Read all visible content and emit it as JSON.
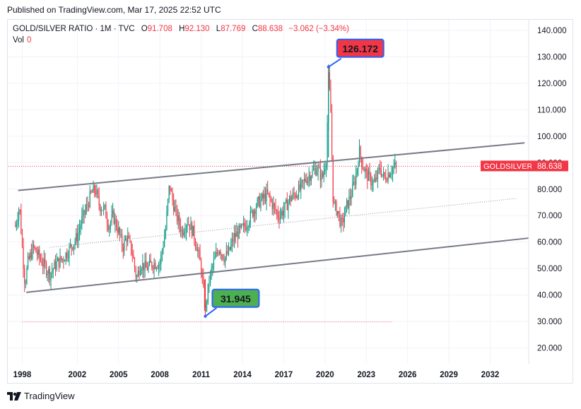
{
  "header": {
    "published": "Published on TradingView.com, Mar 17, 2025 22:52 UTC"
  },
  "legend": {
    "symbol": "GOLD/SILVER RATIO · 1M · TVC",
    "open_label": "O",
    "open": "91.708",
    "high_label": "H",
    "high": "92.130",
    "low_label": "L",
    "low": "87.769",
    "close_label": "C",
    "close": "88.638",
    "change": "−3.062 (−3.34%)",
    "vol_label": "Vol",
    "vol": "0"
  },
  "footer": {
    "brand": "TradingView"
  },
  "chart_data": {
    "type": "candlestick",
    "symbol": "GOLD/SILVER RATIO",
    "interval": "1M",
    "xlim": [
      1997.0,
      2034.8
    ],
    "ylim": [
      14.0,
      144.0
    ],
    "y_ticks": [
      "20.000",
      "30.000",
      "40.000",
      "50.000",
      "60.000",
      "70.000",
      "80.000",
      "90.000",
      "100.000",
      "110.000",
      "120.000",
      "130.000",
      "140.000"
    ],
    "y_tick_values": [
      20,
      30,
      40,
      50,
      60,
      70,
      80,
      90,
      100,
      110,
      120,
      130,
      140
    ],
    "x_ticks": [
      "1998",
      "2002",
      "2005",
      "2008",
      "2011",
      "2014",
      "2017",
      "2020",
      "2023",
      "2026",
      "2029",
      "2032"
    ],
    "x_tick_values": [
      1998,
      2002,
      2005,
      2008,
      2011,
      2014,
      2017,
      2020,
      2023,
      2026,
      2029,
      2032
    ],
    "last_price": 88.638,
    "last_label": "GOLDSILVER",
    "last_value_text": "88.638",
    "high_annotation": {
      "x": 2020.25,
      "y": 126.172,
      "text": "126.172"
    },
    "low_annotation": {
      "x": 2011.3,
      "y": 31.945,
      "text": "31.945"
    },
    "trend_lines": [
      {
        "name": "upper",
        "x1": 1997.7,
        "y1": 79.5,
        "x2": 2034.5,
        "y2": 97.5
      },
      {
        "name": "lower",
        "x1": 1998.3,
        "y1": 41.0,
        "x2": 2034.8,
        "y2": 61.5
      },
      {
        "name": "mid",
        "x1": 2000.0,
        "y1": 58.0,
        "x2": 2033.9,
        "y2": 76.5,
        "dotted": true
      }
    ],
    "low_level_line": {
      "y": 29.8,
      "x1": 1998.0,
      "x2": 2024.9
    },
    "colors": {
      "up": "#089981",
      "down": "#f23645",
      "trend": "#787b86",
      "label_high": "#f23645",
      "label_low": "#4caf50"
    },
    "anchors": [
      [
        1997.5,
        66
      ],
      [
        1997.8,
        74
      ],
      [
        1998.0,
        58
      ],
      [
        1998.2,
        44
      ],
      [
        1998.4,
        52
      ],
      [
        1998.8,
        58
      ],
      [
        1999.5,
        52
      ],
      [
        2000.0,
        48
      ],
      [
        2000.5,
        52
      ],
      [
        2001.0,
        54
      ],
      [
        2001.5,
        58
      ],
      [
        2002.0,
        62
      ],
      [
        2002.3,
        68
      ],
      [
        2002.6,
        72
      ],
      [
        2003.0,
        78
      ],
      [
        2003.3,
        80
      ],
      [
        2003.6,
        74
      ],
      [
        2004.0,
        72
      ],
      [
        2004.3,
        66
      ],
      [
        2004.6,
        70
      ],
      [
        2005.0,
        64
      ],
      [
        2005.3,
        58
      ],
      [
        2005.6,
        62
      ],
      [
        2006.0,
        56
      ],
      [
        2006.3,
        46
      ],
      [
        2006.6,
        52
      ],
      [
        2007.0,
        50
      ],
      [
        2007.5,
        52
      ],
      [
        2008.0,
        52
      ],
      [
        2008.4,
        64
      ],
      [
        2008.7,
        82
      ],
      [
        2008.9,
        76
      ],
      [
        2009.2,
        70
      ],
      [
        2009.6,
        64
      ],
      [
        2010.0,
        68
      ],
      [
        2010.4,
        64
      ],
      [
        2010.7,
        58
      ],
      [
        2011.0,
        50
      ],
      [
        2011.3,
        34
      ],
      [
        2011.6,
        46
      ],
      [
        2011.9,
        52
      ],
      [
        2012.3,
        58
      ],
      [
        2012.7,
        54
      ],
      [
        2013.0,
        56
      ],
      [
        2013.4,
        62
      ],
      [
        2013.8,
        64
      ],
      [
        2014.2,
        66
      ],
      [
        2014.6,
        70
      ],
      [
        2015.0,
        74
      ],
      [
        2015.4,
        76
      ],
      [
        2015.8,
        78
      ],
      [
        2016.2,
        74
      ],
      [
        2016.6,
        70
      ],
      [
        2017.0,
        72
      ],
      [
        2017.4,
        76
      ],
      [
        2017.8,
        78
      ],
      [
        2018.2,
        80
      ],
      [
        2018.6,
        84
      ],
      [
        2019.0,
        86
      ],
      [
        2019.4,
        88
      ],
      [
        2019.8,
        84
      ],
      [
        2020.1,
        92
      ],
      [
        2020.25,
        122
      ],
      [
        2020.4,
        112
      ],
      [
        2020.6,
        74
      ],
      [
        2020.9,
        72
      ],
      [
        2021.2,
        66
      ],
      [
        2021.6,
        74
      ],
      [
        2021.9,
        78
      ],
      [
        2022.2,
        84
      ],
      [
        2022.5,
        94
      ],
      [
        2022.8,
        88
      ],
      [
        2023.2,
        84
      ],
      [
        2023.6,
        82
      ],
      [
        2024.0,
        88
      ],
      [
        2024.3,
        84
      ],
      [
        2024.6,
        86
      ],
      [
        2024.9,
        88
      ],
      [
        2025.2,
        88.6
      ]
    ],
    "candles_per_year": 12
  }
}
